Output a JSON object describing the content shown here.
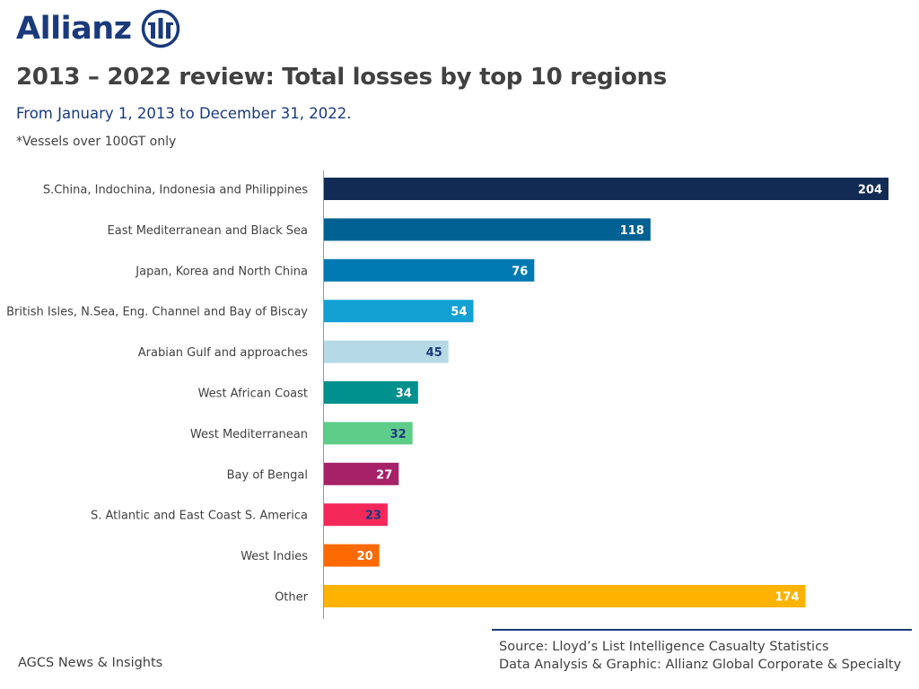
{
  "brand": {
    "name": "Allianz",
    "logo_icon": "allianz-eagle-icon",
    "color": "#1a3a7c"
  },
  "header": {
    "title": "2013 – 2022 review: Total losses by top 10 regions",
    "subtitle": "From January 1, 2013 to December 31, 2022.",
    "note": "*Vessels over 100GT only"
  },
  "footer": {
    "left": "AGCS News & Insights",
    "source": "Source: Lloyd’s List Intelligence Casualty Statistics",
    "credit": "Data Analysis & Graphic: Allianz Global Corporate & Specialty"
  },
  "chart_data": {
    "type": "bar",
    "orientation": "horizontal",
    "title": "2013 – 2022 review: Total losses by top 10 regions",
    "xlabel": "",
    "ylabel": "",
    "xlim": [
      0,
      204
    ],
    "grid": false,
    "legend": "none",
    "categories": [
      "S.China, Indochina, Indonesia and Philippines",
      "East Mediterranean and Black Sea",
      "Japan, Korea and North China",
      "British Isles, N.Sea, Eng. Channel and Bay of Biscay",
      "Arabian Gulf and approaches",
      "West African Coast",
      "West Mediterranean",
      "Bay of Bengal",
      "S. Atlantic and East Coast S. America",
      "West Indies",
      "Other"
    ],
    "values": [
      204,
      118,
      76,
      54,
      45,
      34,
      32,
      27,
      23,
      20,
      174
    ],
    "colors": [
      "#122b54",
      "#006192",
      "#007ab3",
      "#13a0d3",
      "#b5dae6",
      "#00908d",
      "#5ecd8a",
      "#a62167",
      "#f5285a",
      "#fd6a00",
      "#fdb300"
    ],
    "label_colors": [
      "#ffffff",
      "#ffffff",
      "#ffffff",
      "#ffffff",
      "#1a3a7c",
      "#ffffff",
      "#1a3a7c",
      "#ffffff",
      "#1a3a7c",
      "#ffffff",
      "#ffffff"
    ]
  }
}
